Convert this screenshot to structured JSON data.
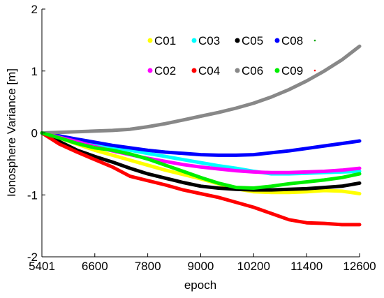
{
  "chart_data": {
    "type": "line",
    "title": "",
    "xlabel": "epoch",
    "ylabel": "Ionosphere Variance [m]",
    "xlim": [
      5401,
      12600
    ],
    "ylim": [
      -2,
      2
    ],
    "xticks": [
      5401,
      6600,
      7800,
      9000,
      10200,
      11400,
      12600
    ],
    "xtick_labels": [
      "5401",
      "6600",
      "7800",
      "9000",
      "10200",
      "11400",
      "12600"
    ],
    "yticks": [
      -2,
      -1,
      0,
      1,
      2
    ],
    "ytick_labels": [
      "-2",
      "-1",
      "0",
      "1",
      "2"
    ],
    "grid": false,
    "legend_placement": "top",
    "series": [
      {
        "name": "C01",
        "color": "#ffff00",
        "x": [
          5401,
          5800,
          6200,
          6600,
          7000,
          7400,
          7800,
          8200,
          8600,
          9000,
          9400,
          9800,
          10200,
          10600,
          11000,
          11400,
          11800,
          12200,
          12600
        ],
        "y": [
          0,
          -0.08,
          -0.18,
          -0.28,
          -0.36,
          -0.44,
          -0.52,
          -0.6,
          -0.67,
          -0.74,
          -0.82,
          -0.9,
          -0.95,
          -0.96,
          -0.96,
          -0.95,
          -0.93,
          -0.94,
          -0.98
        ]
      },
      {
        "name": "C03",
        "color": "#00ffff",
        "x": [
          5401,
          5800,
          6200,
          6600,
          7000,
          7400,
          7800,
          8200,
          8600,
          9000,
          9400,
          9800,
          10200,
          10600,
          11000,
          11400,
          11800,
          12200,
          12600
        ],
        "y": [
          0,
          -0.05,
          -0.11,
          -0.17,
          -0.23,
          -0.28,
          -0.33,
          -0.38,
          -0.43,
          -0.48,
          -0.53,
          -0.57,
          -0.62,
          -0.66,
          -0.66,
          -0.65,
          -0.64,
          -0.63,
          -0.62
        ]
      },
      {
        "name": "C05",
        "color": "#000000",
        "x": [
          5401,
          5800,
          6200,
          6600,
          7000,
          7400,
          7800,
          8200,
          8600,
          9000,
          9400,
          9800,
          10200,
          10600,
          11000,
          11400,
          11800,
          12200,
          12600
        ],
        "y": [
          0,
          -0.14,
          -0.28,
          -0.38,
          -0.47,
          -0.57,
          -0.66,
          -0.73,
          -0.8,
          -0.86,
          -0.89,
          -0.91,
          -0.92,
          -0.92,
          -0.91,
          -0.9,
          -0.88,
          -0.86,
          -0.81
        ]
      },
      {
        "name": "C08",
        "color": "#0000ff",
        "x": [
          5401,
          5800,
          6200,
          6600,
          7000,
          7400,
          7800,
          8200,
          8600,
          9000,
          9400,
          9800,
          10200,
          10600,
          11000,
          11400,
          11800,
          12200,
          12600
        ],
        "y": [
          0,
          -0.05,
          -0.1,
          -0.15,
          -0.2,
          -0.24,
          -0.28,
          -0.31,
          -0.33,
          -0.35,
          -0.36,
          -0.36,
          -0.35,
          -0.32,
          -0.29,
          -0.25,
          -0.21,
          -0.17,
          -0.13
        ]
      },
      {
        "name": "C02",
        "color": "#ff00ff",
        "x": [
          5401,
          5800,
          6200,
          6600,
          7000,
          7400,
          7800,
          8200,
          8600,
          9000,
          9400,
          9800,
          10200,
          10600,
          11000,
          11400,
          11800,
          12200,
          12600
        ],
        "y": [
          0,
          -0.07,
          -0.14,
          -0.22,
          -0.29,
          -0.35,
          -0.41,
          -0.46,
          -0.51,
          -0.55,
          -0.58,
          -0.61,
          -0.63,
          -0.64,
          -0.64,
          -0.63,
          -0.62,
          -0.6,
          -0.57
        ]
      },
      {
        "name": "C04",
        "color": "#ff0000",
        "x": [
          5401,
          5800,
          6200,
          6600,
          7000,
          7400,
          7800,
          8200,
          8600,
          9000,
          9400,
          9800,
          10200,
          10600,
          11000,
          11400,
          11800,
          12200,
          12600
        ],
        "y": [
          0,
          -0.18,
          -0.31,
          -0.43,
          -0.55,
          -0.7,
          -0.77,
          -0.84,
          -0.92,
          -0.98,
          -1.04,
          -1.12,
          -1.2,
          -1.3,
          -1.4,
          -1.45,
          -1.46,
          -1.48,
          -1.48
        ]
      },
      {
        "name": "C06",
        "color": "#888888",
        "x": [
          5401,
          5800,
          6200,
          6600,
          7000,
          7400,
          7800,
          8200,
          8600,
          9000,
          9400,
          9800,
          10200,
          10600,
          11000,
          11400,
          11800,
          12200,
          12600
        ],
        "y": [
          0,
          0.01,
          0.02,
          0.03,
          0.04,
          0.06,
          0.1,
          0.15,
          0.21,
          0.27,
          0.33,
          0.4,
          0.48,
          0.58,
          0.7,
          0.84,
          1.0,
          1.18,
          1.4
        ]
      },
      {
        "name": "C09",
        "color": "#00ee00",
        "x": [
          5401,
          5800,
          6200,
          6600,
          7000,
          7400,
          7800,
          8200,
          8600,
          9000,
          9400,
          9800,
          10200,
          10600,
          11000,
          11400,
          11800,
          12200,
          12600
        ],
        "y": [
          0,
          -0.08,
          -0.17,
          -0.24,
          -0.28,
          -0.34,
          -0.42,
          -0.52,
          -0.62,
          -0.72,
          -0.81,
          -0.88,
          -0.89,
          -0.86,
          -0.82,
          -0.79,
          -0.76,
          -0.72,
          -0.66
        ]
      }
    ]
  }
}
